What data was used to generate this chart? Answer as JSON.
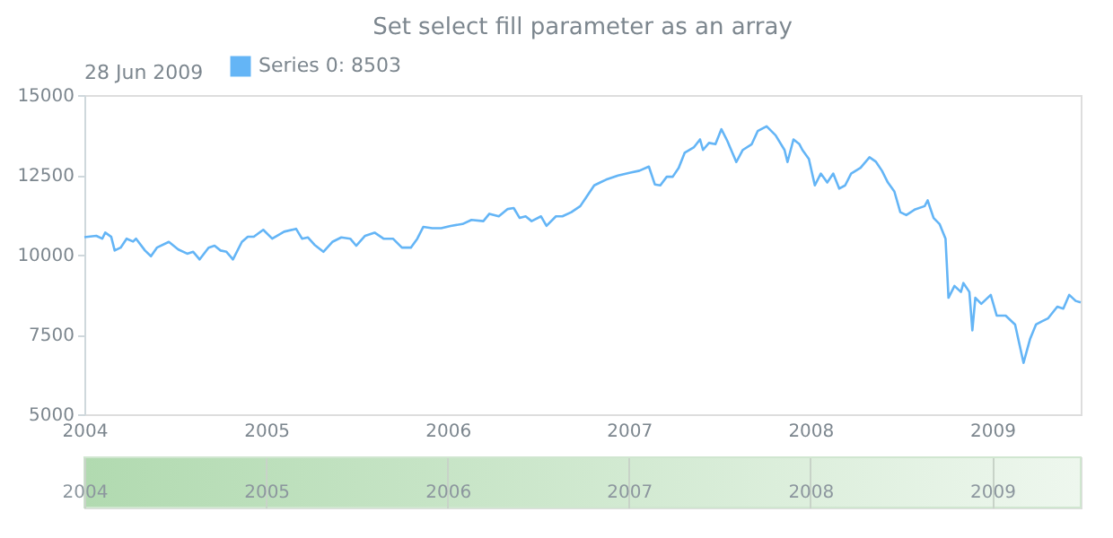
{
  "chart_data": {
    "type": "line",
    "title": "Set select fill parameter as an array",
    "legend_title": "28 Jun 2009",
    "legend": "top left",
    "grid": false,
    "marker": "none",
    "line_style": "solid",
    "xlim": [
      "2004-01-01",
      "2009-06-28"
    ],
    "xticks": [
      "2004",
      "2005",
      "2006",
      "2007",
      "2008",
      "2009"
    ],
    "x2lim": [
      "2004-01-01",
      "2009-06-28"
    ],
    "x2ticks": [
      "2004",
      "2005",
      "2006",
      "2007",
      "2008",
      "2009"
    ],
    "ylim": [
      5000,
      15000
    ],
    "yticks": [
      5000,
      7500,
      10000,
      12500,
      15000
    ],
    "series": [
      {
        "name": "Series 0: 8503",
        "color": "#64b5f6",
        "x": [
          "2004-01-01",
          "2004-01-25",
          "2004-02-06",
          "2004-02-12",
          "2004-02-24",
          "2004-03-02",
          "2004-03-14",
          "2004-03-26",
          "2004-04-08",
          "2004-04-14",
          "2004-05-02",
          "2004-05-14",
          "2004-05-26",
          "2004-06-19",
          "2004-07-08",
          "2004-07-26",
          "2004-08-07",
          "2004-08-20",
          "2004-09-07",
          "2004-09-19",
          "2004-10-01",
          "2004-10-13",
          "2004-10-26",
          "2004-11-13",
          "2004-11-25",
          "2004-12-07",
          "2004-12-26",
          "2005-01-13",
          "2005-02-06",
          "2005-03-02",
          "2005-03-14",
          "2005-03-26",
          "2005-04-08",
          "2005-04-26",
          "2005-05-14",
          "2005-06-01",
          "2005-06-19",
          "2005-07-01",
          "2005-07-19",
          "2005-08-07",
          "2005-08-25",
          "2005-09-13",
          "2005-10-01",
          "2005-10-19",
          "2005-11-01",
          "2005-11-13",
          "2005-12-01",
          "2005-12-19",
          "2006-01-07",
          "2006-01-31",
          "2006-02-18",
          "2006-03-14",
          "2006-03-26",
          "2006-04-14",
          "2006-05-02",
          "2006-05-14",
          "2006-05-26",
          "2006-06-07",
          "2006-06-19",
          "2006-07-08",
          "2006-07-19",
          "2006-08-07",
          "2006-08-20",
          "2006-09-07",
          "2006-09-25",
          "2006-10-07",
          "2006-10-23",
          "2006-11-04",
          "2006-11-16",
          "2006-12-10",
          "2007-01-04",
          "2007-01-22",
          "2007-02-10",
          "2007-02-22",
          "2007-03-05",
          "2007-03-18",
          "2007-03-30",
          "2007-04-11",
          "2007-04-23",
          "2007-05-12",
          "2007-05-24",
          "2007-05-30",
          "2007-06-11",
          "2007-06-24",
          "2007-07-06",
          "2007-07-18",
          "2007-08-05",
          "2007-08-18",
          "2007-09-05",
          "2007-09-17",
          "2007-10-05",
          "2007-10-23",
          "2007-11-10",
          "2007-11-16",
          "2007-11-28",
          "2007-12-10",
          "2007-12-16",
          "2007-12-29",
          "2008-01-10",
          "2008-01-22",
          "2008-02-04",
          "2008-02-16",
          "2008-02-28",
          "2008-03-11",
          "2008-03-23",
          "2008-04-11",
          "2008-04-29",
          "2008-05-12",
          "2008-05-24",
          "2008-06-05",
          "2008-06-18",
          "2008-06-30",
          "2008-07-12",
          "2008-07-30",
          "2008-08-18",
          "2008-08-24",
          "2008-09-05",
          "2008-09-17",
          "2008-09-29",
          "2008-10-05",
          "2008-10-17",
          "2008-10-30",
          "2008-11-04",
          "2008-11-16",
          "2008-11-22",
          "2008-11-28",
          "2008-12-10",
          "2008-12-29",
          "2009-01-10",
          "2009-01-28",
          "2009-02-16",
          "2009-03-05",
          "2009-03-18",
          "2009-03-30",
          "2009-04-11",
          "2009-04-23",
          "2009-05-12",
          "2009-05-24",
          "2009-06-05",
          "2009-06-18",
          "2009-06-28"
        ],
        "values": [
          10550,
          10590,
          10500,
          10690,
          10560,
          10130,
          10220,
          10500,
          10410,
          10500,
          10130,
          9950,
          10220,
          10400,
          10160,
          10030,
          10090,
          9850,
          10220,
          10280,
          10130,
          10090,
          9850,
          10400,
          10560,
          10560,
          10780,
          10500,
          10720,
          10810,
          10500,
          10540,
          10310,
          10090,
          10400,
          10540,
          10500,
          10280,
          10590,
          10690,
          10500,
          10500,
          10220,
          10220,
          10500,
          10870,
          10830,
          10830,
          10900,
          10960,
          11090,
          11050,
          11280,
          11200,
          11430,
          11460,
          11150,
          11200,
          11050,
          11200,
          10900,
          11200,
          11200,
          11330,
          11520,
          11800,
          12170,
          12260,
          12350,
          12480,
          12570,
          12630,
          12760,
          12200,
          12170,
          12440,
          12440,
          12720,
          13190,
          13370,
          13610,
          13280,
          13500,
          13460,
          13930,
          13560,
          12900,
          13280,
          13460,
          13870,
          14020,
          13740,
          13280,
          12900,
          13610,
          13460,
          13280,
          13000,
          12170,
          12540,
          12260,
          12540,
          12070,
          12170,
          12540,
          12720,
          13050,
          12910,
          12630,
          12260,
          11980,
          11330,
          11240,
          11420,
          11520,
          11700,
          11150,
          10960,
          10500,
          8650,
          9020,
          8830,
          9110,
          8830,
          7630,
          8650,
          8460,
          8740,
          8090,
          8090,
          7810,
          6610,
          7350,
          7810,
          7910,
          8000,
          8370,
          8310,
          8740,
          8550,
          8503
        ]
      }
    ]
  }
}
